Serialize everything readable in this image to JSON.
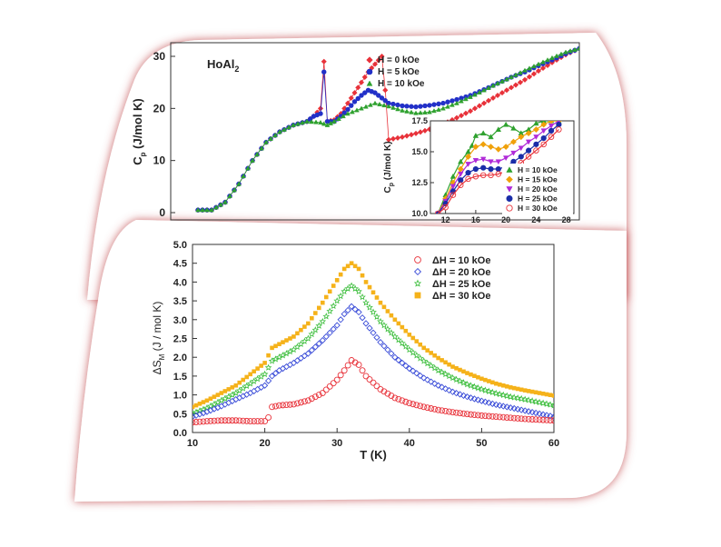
{
  "chart_data": [
    {
      "type": "scatter",
      "title": "HoAl",
      "title_sub": "2",
      "ylabel": "C",
      "ylabel_sub": "p",
      "ylabel_unit": " (J/mol K)",
      "ylim": [
        0,
        30
      ],
      "yticks": [
        "0",
        "10",
        "20",
        "30"
      ],
      "xlim": [
        0,
        60
      ],
      "legend_position": "top-right",
      "series": [
        {
          "name": "H =  0 kOe",
          "color": "#e8323a",
          "marker": "diamond",
          "x": [
            4,
            6,
            8,
            10,
            12,
            14,
            16,
            18,
            20,
            21,
            22,
            22.5,
            23,
            24,
            25,
            26,
            27,
            28,
            29,
            30,
            31,
            31.5,
            32,
            34,
            36,
            38,
            40,
            42,
            44,
            46,
            48,
            50,
            52,
            54,
            56,
            58,
            60
          ],
          "y": [
            0.5,
            0.5,
            2,
            5.5,
            10,
            13.5,
            15.5,
            16.8,
            17.5,
            18.5,
            20,
            29,
            17.5,
            17.8,
            19,
            21,
            23,
            25,
            27,
            28.5,
            30,
            23.5,
            14,
            14.5,
            15.2,
            16,
            17,
            18.2,
            19.5,
            21,
            22.5,
            24,
            25.5,
            27.2,
            28.8,
            30.3,
            31.5
          ]
        },
        {
          "name": "H =  5 kOe",
          "color": "#2230c8",
          "marker": "circle",
          "x": [
            4,
            6,
            8,
            10,
            12,
            14,
            16,
            18,
            20,
            21,
            22,
            22.5,
            23,
            24,
            25,
            26,
            27,
            28,
            29,
            30,
            31,
            32,
            34,
            36,
            38,
            40,
            42,
            44,
            46,
            48,
            50,
            52,
            54,
            56,
            58,
            60
          ],
          "y": [
            0.5,
            0.5,
            2,
            5.5,
            10,
            13.5,
            15.5,
            16.8,
            17.5,
            18.5,
            19,
            27,
            17.5,
            17.5,
            18.5,
            19.8,
            21.3,
            22.5,
            23.5,
            23,
            22,
            21,
            20.5,
            20.3,
            20.6,
            21,
            21.7,
            22.5,
            23.6,
            24.8,
            26,
            27,
            28.2,
            29.3,
            30.5,
            31.5
          ]
        },
        {
          "name": "H = 10 kOe",
          "color": "#2ea12e",
          "marker": "triangle",
          "x": [
            4,
            6,
            8,
            10,
            12,
            14,
            16,
            18,
            20,
            22,
            23,
            24,
            26,
            28,
            30,
            32,
            34,
            36,
            38,
            40,
            42,
            44,
            46,
            48,
            50,
            52,
            54,
            56,
            58,
            60
          ],
          "y": [
            0.5,
            0.5,
            2,
            5.5,
            10,
            13.5,
            15.5,
            16.8,
            17.5,
            17.3,
            16.8,
            17.5,
            19,
            20,
            21,
            20.4,
            19.6,
            19.1,
            19.3,
            20,
            21,
            22.2,
            23.5,
            24.8,
            26,
            27.3,
            28.5,
            29.7,
            30.8,
            31.5
          ]
        }
      ],
      "inset": {
        "ylabel": "C",
        "ylabel_sub": "p",
        "ylabel_unit": " (J/mol K)",
        "ylim": [
          10,
          17.5
        ],
        "yticks": [
          "10.0",
          "12.5",
          "15.0",
          "17.5"
        ],
        "xlim": [
          10,
          29
        ],
        "xticks": [
          "12",
          "16",
          "20",
          "24",
          "28"
        ],
        "legend_position": "bottom-right",
        "series": [
          {
            "name": "H = 10 kOe",
            "color": "#2ea12e",
            "marker": "triangle",
            "x": [
              11,
              12,
              13,
              14,
              15,
              15.5,
              16,
              17,
              18,
              19,
              20,
              21,
              22,
              23,
              24,
              25,
              26,
              27
            ],
            "y": [
              10,
              11.5,
              13,
              14.2,
              15,
              15.5,
              16.3,
              16.5,
              16.2,
              16.8,
              17.2,
              16.9,
              16.5,
              16.8,
              17.3,
              17.5,
              17.5,
              17.5
            ]
          },
          {
            "name": "H = 15 kOe",
            "color": "#f0a10a",
            "marker": "diamond",
            "x": [
              11,
              12,
              13,
              14,
              15,
              16,
              17,
              18,
              19,
              20,
              21,
              22,
              23,
              24,
              25,
              26,
              27
            ],
            "y": [
              10,
              11.2,
              12.5,
              13.6,
              14.6,
              15.4,
              15.6,
              15.4,
              15.2,
              15.4,
              15.8,
              16.2,
              16.5,
              16.8,
              17.2,
              17.5,
              17.5
            ]
          },
          {
            "name": "H = 20 kOe",
            "color": "#b02ad8",
            "marker": "triangle-down",
            "x": [
              11,
              12,
              13,
              14,
              15,
              16,
              17,
              18,
              19,
              20,
              21,
              22,
              23,
              24,
              25,
              26,
              27
            ],
            "y": [
              10,
              11,
              12.2,
              13.2,
              14,
              14.3,
              14.4,
              14.2,
              14.2,
              14.5,
              14.9,
              15.3,
              15.8,
              16.2,
              16.7,
              17.1,
              17.5
            ]
          },
          {
            "name": "H = 25 kOe",
            "color": "#1a2da8",
            "marker": "hexagon",
            "x": [
              11,
              12,
              13,
              14,
              15,
              16,
              17,
              18,
              19,
              20,
              21,
              22,
              23,
              24,
              25,
              26,
              27
            ],
            "y": [
              10,
              10.8,
              11.8,
              12.7,
              13.3,
              13.6,
              13.7,
              13.6,
              13.6,
              13.8,
              14.2,
              14.6,
              15.1,
              15.6,
              16.1,
              16.7,
              17.2
            ]
          },
          {
            "name": "H = 30 kOe",
            "color": "#e8323a",
            "marker": "open-circle",
            "x": [
              11,
              12,
              13,
              14,
              15,
              16,
              17,
              18,
              19,
              20,
              21,
              22,
              23,
              24,
              25,
              26,
              27
            ],
            "y": [
              10,
              10.5,
              11.5,
              12.3,
              12.8,
              13,
              13.1,
              13.1,
              13.2,
              13.4,
              13.7,
              14.1,
              14.6,
              15.1,
              15.6,
              16.2,
              16.8
            ]
          }
        ]
      }
    },
    {
      "type": "scatter",
      "xlabel": "T (K)",
      "ylabel": "ΔS",
      "ylabel_sub": "M",
      "ylabel_unit": " (J / mol K)",
      "xlim": [
        10,
        60
      ],
      "ylim": [
        0,
        5
      ],
      "xticks": [
        "10",
        "20",
        "30",
        "40",
        "50",
        "60"
      ],
      "yticks": [
        "0.0",
        "0.5",
        "1.0",
        "1.5",
        "2.0",
        "2.5",
        "3.0",
        "3.5",
        "4.0",
        "4.5",
        "5.0"
      ],
      "legend_position": "top-right",
      "series": [
        {
          "name": "ΔH = 10 kOe",
          "color": "#e8323a",
          "marker": "open-circle",
          "x": [
            10,
            12,
            14,
            16,
            18,
            20,
            20.5,
            21,
            22,
            24,
            26,
            28,
            30,
            31,
            32,
            33,
            34,
            36,
            38,
            40,
            42,
            44,
            46,
            48,
            50,
            52,
            54,
            56,
            58,
            60
          ],
          "y": [
            0.27,
            0.3,
            0.32,
            0.32,
            0.3,
            0.3,
            0.4,
            0.68,
            0.72,
            0.75,
            0.85,
            1.05,
            1.4,
            1.65,
            1.92,
            1.8,
            1.5,
            1.15,
            0.92,
            0.78,
            0.68,
            0.6,
            0.54,
            0.49,
            0.45,
            0.42,
            0.39,
            0.36,
            0.34,
            0.32
          ]
        },
        {
          "name": "ΔH = 20 kOe",
          "color": "#3a4cd8",
          "marker": "open-diamond",
          "x": [
            10,
            12,
            14,
            16,
            18,
            20,
            21,
            22,
            24,
            26,
            28,
            30,
            31,
            32,
            33,
            34,
            36,
            38,
            40,
            42,
            44,
            46,
            48,
            50,
            52,
            54,
            56,
            58,
            60
          ],
          "y": [
            0.42,
            0.55,
            0.7,
            0.88,
            1.05,
            1.25,
            1.5,
            1.65,
            1.85,
            2.1,
            2.45,
            2.85,
            3.15,
            3.35,
            3.2,
            2.9,
            2.4,
            2.0,
            1.7,
            1.45,
            1.25,
            1.08,
            0.95,
            0.84,
            0.74,
            0.66,
            0.58,
            0.5,
            0.42
          ]
        },
        {
          "name": "ΔH = 25 kOe",
          "color": "#3cbe3c",
          "marker": "open-star",
          "x": [
            10,
            12,
            14,
            16,
            18,
            20,
            21,
            22,
            24,
            26,
            28,
            30,
            31,
            32,
            33,
            34,
            36,
            38,
            40,
            42,
            44,
            46,
            48,
            50,
            52,
            54,
            56,
            58,
            60
          ],
          "y": [
            0.5,
            0.65,
            0.85,
            1.05,
            1.3,
            1.55,
            1.9,
            2.0,
            2.2,
            2.5,
            2.95,
            3.5,
            3.75,
            3.9,
            3.75,
            3.45,
            2.95,
            2.55,
            2.2,
            1.9,
            1.65,
            1.45,
            1.28,
            1.15,
            1.04,
            0.95,
            0.88,
            0.8,
            0.72
          ]
        },
        {
          "name": "ΔH = 30 kOe",
          "color": "#f5b21a",
          "marker": "square",
          "x": [
            10,
            12,
            14,
            16,
            18,
            20,
            21,
            22,
            24,
            26,
            28,
            30,
            31,
            32,
            33,
            34,
            36,
            38,
            40,
            42,
            44,
            46,
            48,
            50,
            52,
            54,
            56,
            58,
            60
          ],
          "y": [
            0.68,
            0.85,
            1.05,
            1.25,
            1.55,
            1.85,
            2.25,
            2.35,
            2.55,
            2.9,
            3.45,
            4.05,
            4.35,
            4.5,
            4.35,
            4.0,
            3.45,
            3.0,
            2.6,
            2.25,
            1.98,
            1.75,
            1.58,
            1.43,
            1.3,
            1.2,
            1.12,
            1.05,
            0.98
          ]
        }
      ]
    }
  ]
}
